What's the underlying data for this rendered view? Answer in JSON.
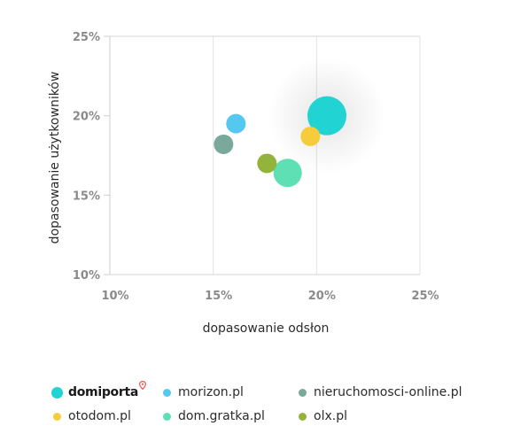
{
  "chart_data": {
    "type": "scatter",
    "xlabel": "dopasowanie odsłon",
    "ylabel": "dopasowanie użytkowników",
    "xlim": [
      10,
      25
    ],
    "ylim": [
      10,
      25
    ],
    "x_ticks": [
      "10%",
      "15%",
      "20%",
      "25%"
    ],
    "y_ticks": [
      "10%",
      "15%",
      "20%",
      "25%"
    ],
    "grid": true,
    "legend_position": "bottom",
    "series": [
      {
        "name": "domiporta",
        "color": "#22d3d3",
        "x": 20.5,
        "y": 20.0,
        "size": 3
      },
      {
        "name": "morizon.pl",
        "color": "#55c8f0",
        "x": 16.1,
        "y": 19.5,
        "size": 1
      },
      {
        "name": "nieruchomosci-online.pl",
        "color": "#7aa89a",
        "x": 15.5,
        "y": 18.2,
        "size": 1
      },
      {
        "name": "otodom.pl",
        "color": "#f5cd3c",
        "x": 19.7,
        "y": 18.7,
        "size": 1
      },
      {
        "name": "dom.gratka.pl",
        "color": "#5ee0b4",
        "x": 18.6,
        "y": 16.4,
        "size": 2
      },
      {
        "name": "olx.pl",
        "color": "#93b43c",
        "x": 17.6,
        "y": 17.0,
        "size": 1
      }
    ]
  },
  "legend": {
    "items": [
      {
        "label": "domiporta",
        "color": "#22d3d3"
      },
      {
        "label": "morizon.pl",
        "color": "#55c8f0"
      },
      {
        "label": "nieruchomosci-online.pl",
        "color": "#7aa89a"
      },
      {
        "label": "otodom.pl",
        "color": "#f5cd3c"
      },
      {
        "label": "dom.gratka.pl",
        "color": "#5ee0b4"
      },
      {
        "label": "olx.pl",
        "color": "#93b43c"
      }
    ]
  }
}
